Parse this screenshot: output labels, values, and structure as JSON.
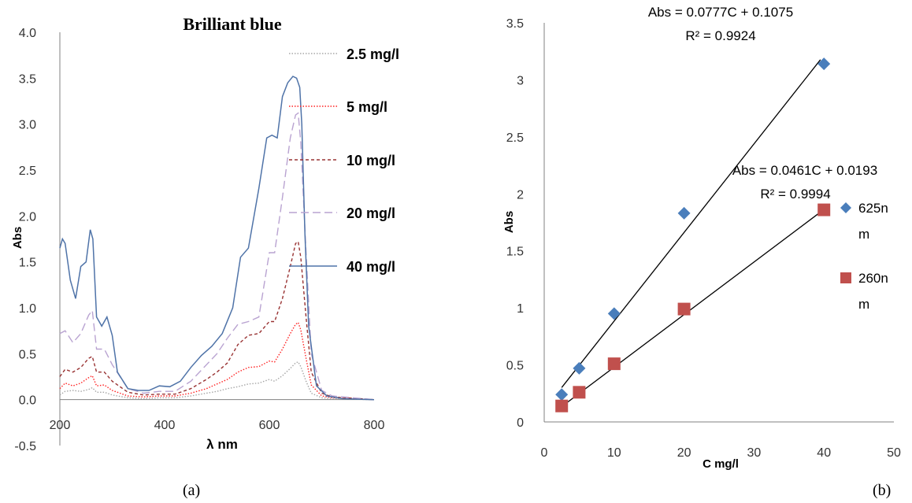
{
  "figure": {
    "caption_a": "(a)",
    "caption_b": "(b)"
  },
  "chart_data": [
    {
      "type": "line",
      "title": "Brilliant blue",
      "xlabel": "λ nm",
      "ylabel": "Abs",
      "xlim": [
        200,
        800
      ],
      "ylim": [
        -0.5,
        4.0
      ],
      "xticks": [
        "200",
        "400",
        "600",
        "800"
      ],
      "yticks": [
        "-0.5",
        "0.0",
        "0.5",
        "1.0",
        "1.5",
        "2.0",
        "2.5",
        "3.0",
        "3.5",
        "4.0"
      ],
      "legend_position": "top-right",
      "series": [
        {
          "name": "2.5 mg/l",
          "color": "#a6a6a6",
          "dash": "dotted",
          "x": [
            200,
            210,
            225,
            240,
            255,
            262,
            270,
            285,
            300,
            330,
            360,
            390,
            420,
            450,
            480,
            500,
            520,
            540,
            560,
            580,
            600,
            610,
            625,
            640,
            650,
            655,
            660,
            670,
            680,
            700,
            720,
            800
          ],
          "y": [
            0.05,
            0.09,
            0.1,
            0.09,
            0.11,
            0.13,
            0.08,
            0.08,
            0.05,
            0.02,
            0.01,
            0.02,
            0.02,
            0.04,
            0.07,
            0.09,
            0.12,
            0.14,
            0.17,
            0.18,
            0.22,
            0.2,
            0.26,
            0.34,
            0.4,
            0.41,
            0.36,
            0.2,
            0.07,
            0.02,
            0.01,
            0.0
          ]
        },
        {
          "name": "5 mg/l",
          "color": "#ff2222",
          "dash": "dotted",
          "x": [
            200,
            210,
            225,
            240,
            255,
            262,
            270,
            285,
            300,
            330,
            360,
            390,
            420,
            450,
            480,
            500,
            520,
            540,
            560,
            580,
            600,
            610,
            625,
            640,
            650,
            655,
            660,
            670,
            680,
            700,
            720,
            800
          ],
          "y": [
            0.12,
            0.18,
            0.15,
            0.18,
            0.24,
            0.26,
            0.15,
            0.16,
            0.1,
            0.04,
            0.03,
            0.04,
            0.04,
            0.07,
            0.12,
            0.17,
            0.22,
            0.3,
            0.35,
            0.36,
            0.42,
            0.41,
            0.55,
            0.72,
            0.82,
            0.84,
            0.76,
            0.45,
            0.16,
            0.04,
            0.02,
            0.0
          ]
        },
        {
          "name": "10 mg/l",
          "color": "#993333",
          "dash": "short",
          "x": [
            200,
            210,
            225,
            240,
            255,
            262,
            270,
            285,
            300,
            330,
            360,
            390,
            420,
            450,
            480,
            500,
            520,
            540,
            560,
            580,
            600,
            610,
            625,
            640,
            650,
            655,
            660,
            670,
            680,
            700,
            720,
            800
          ],
          "y": [
            0.25,
            0.33,
            0.3,
            0.35,
            0.45,
            0.47,
            0.3,
            0.3,
            0.2,
            0.08,
            0.05,
            0.06,
            0.06,
            0.12,
            0.22,
            0.3,
            0.4,
            0.6,
            0.7,
            0.72,
            0.85,
            0.85,
            1.1,
            1.45,
            1.7,
            1.72,
            1.55,
            0.9,
            0.3,
            0.07,
            0.03,
            0.0
          ]
        },
        {
          "name": "20 mg/l",
          "color": "#b9a3d1",
          "dash": "long",
          "x": [
            200,
            210,
            225,
            240,
            255,
            262,
            270,
            285,
            300,
            330,
            360,
            390,
            420,
            450,
            480,
            500,
            520,
            540,
            560,
            580,
            600,
            610,
            625,
            640,
            650,
            655,
            660,
            670,
            680,
            700,
            720,
            800
          ],
          "y": [
            0.72,
            0.75,
            0.62,
            0.72,
            0.92,
            0.97,
            0.55,
            0.55,
            0.38,
            0.12,
            0.07,
            0.09,
            0.09,
            0.2,
            0.38,
            0.5,
            0.67,
            0.82,
            0.85,
            0.9,
            1.6,
            1.6,
            2.2,
            2.85,
            3.1,
            3.12,
            2.8,
            1.6,
            0.5,
            0.1,
            0.04,
            0.0
          ]
        },
        {
          "name": "40 mg/l",
          "color": "#4f73a8",
          "dash": "solid",
          "x": [
            200,
            205,
            210,
            220,
            230,
            240,
            250,
            258,
            263,
            270,
            280,
            290,
            300,
            310,
            330,
            350,
            370,
            390,
            410,
            430,
            450,
            470,
            490,
            510,
            530,
            545,
            560,
            580,
            595,
            605,
            615,
            625,
            635,
            645,
            652,
            658,
            662,
            668,
            675,
            690,
            710,
            740,
            800
          ],
          "y": [
            1.65,
            1.75,
            1.7,
            1.3,
            1.1,
            1.45,
            1.5,
            1.85,
            1.75,
            0.9,
            0.8,
            0.9,
            0.7,
            0.3,
            0.12,
            0.1,
            0.1,
            0.15,
            0.14,
            0.2,
            0.35,
            0.48,
            0.58,
            0.72,
            1.0,
            1.55,
            1.65,
            2.3,
            2.85,
            2.88,
            2.85,
            3.3,
            3.45,
            3.52,
            3.5,
            3.4,
            3.0,
            1.8,
            0.8,
            0.15,
            0.04,
            0.01,
            0.0
          ]
        }
      ]
    },
    {
      "type": "scatter",
      "title": "",
      "xlabel": "C mg/l",
      "ylabel": "Abs",
      "xlim": [
        0,
        50
      ],
      "ylim": [
        0,
        3.5
      ],
      "xticks": [
        "0",
        "10",
        "20",
        "30",
        "40",
        "50"
      ],
      "yticks": [
        "0",
        "0.5",
        "1",
        "1.5",
        "2",
        "2.5",
        "3",
        "3.5"
      ],
      "legend_position": "right",
      "series": [
        {
          "name": "625nm",
          "legend_line1": "625n",
          "legend_line2": "m",
          "color": "#4a7ebb",
          "marker": "diamond",
          "x": [
            2.5,
            5,
            10,
            20,
            40
          ],
          "y": [
            0.24,
            0.47,
            0.95,
            1.83,
            3.14
          ],
          "fit": {
            "slope": 0.0777,
            "intercept": 0.1075,
            "x_range": [
              2.5,
              39.5
            ]
          },
          "equation": "Abs = 0.0777C + 0.1075",
          "r2": "R² = 0.9924"
        },
        {
          "name": "260nm",
          "legend_line1": "260n",
          "legend_line2": "m",
          "color": "#c0504d",
          "marker": "square",
          "x": [
            2.5,
            5,
            10,
            20,
            40
          ],
          "y": [
            0.14,
            0.26,
            0.51,
            0.99,
            1.86
          ],
          "fit": {
            "slope": 0.0461,
            "intercept": 0.0193,
            "x_range": [
              2.5,
              39.5
            ]
          },
          "equation": "Abs = 0.0461C + 0.0193",
          "r2": "R² = 0.9994"
        }
      ]
    }
  ]
}
